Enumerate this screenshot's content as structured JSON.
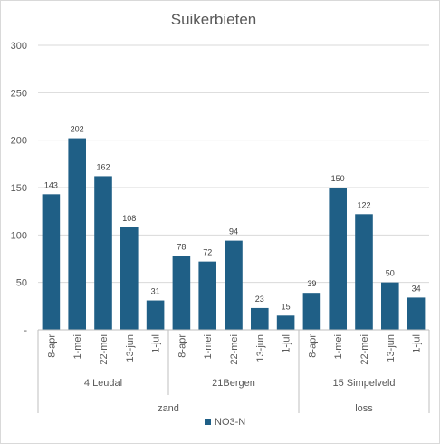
{
  "chart_data": {
    "type": "bar",
    "title": "Suikerbieten",
    "ylim": [
      0,
      300
    ],
    "yticks": [
      "-",
      "50",
      "100",
      "150",
      "200",
      "250",
      "300"
    ],
    "grid": true,
    "legend": "bottom",
    "series": [
      {
        "name": "NO3-N",
        "color": "#1f5f86"
      }
    ],
    "groups": [
      {
        "soil": "zand",
        "locations": [
          {
            "name": "4 Leudal",
            "categories": [
              "8-apr",
              "1-mei",
              "22-mei",
              "13-jun",
              "1-jul"
            ],
            "values": [
              143,
              202,
              162,
              108,
              31
            ]
          },
          {
            "name": "21Bergen",
            "categories": [
              "8-apr",
              "1-mei",
              "22-mei",
              "13-jun",
              "1-jul"
            ],
            "values": [
              78,
              72,
              94,
              23,
              15
            ]
          }
        ]
      },
      {
        "soil": "loss",
        "locations": [
          {
            "name": "15 Simpelveld",
            "categories": [
              "8-apr",
              "1-mei",
              "22-mei",
              "13-jun",
              "1-jul"
            ],
            "values": [
              39,
              150,
              122,
              50,
              34
            ]
          }
        ]
      }
    ]
  }
}
